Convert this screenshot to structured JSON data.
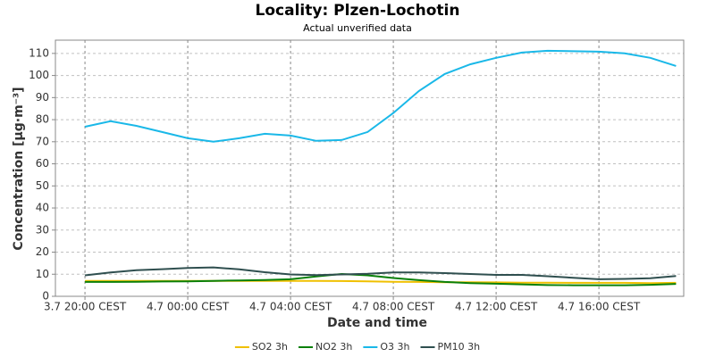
{
  "chart_data": {
    "type": "line",
    "title": "Locality: Plzen-Lochotin",
    "subtitle": "Actual unverified data",
    "x_label": "Date and time",
    "y_label": "Concentration [µg·m⁻³]",
    "categories": [
      "3.7 20:00 CEST",
      null,
      null,
      null,
      "4.7 00:00 CEST",
      null,
      null,
      null,
      "4.7 04:00 CEST",
      null,
      null,
      null,
      "4.7 08:00 CEST",
      null,
      null,
      null,
      "4.7 12:00 CEST",
      null,
      null,
      null,
      "4.7 16:00 CEST",
      null,
      null,
      null
    ],
    "xlim": [
      -1.15,
      23.3
    ],
    "ylim": [
      0,
      116
    ],
    "yticks": [
      0,
      10,
      20,
      30,
      40,
      50,
      60,
      70,
      80,
      90,
      100,
      110
    ],
    "grid": true,
    "legend": "bottom",
    "series": [
      {
        "name": "SO2 3h",
        "color": "#f0c000",
        "values": [
          7,
          7,
          7,
          7,
          7,
          7,
          7,
          7,
          7,
          7,
          6.9,
          6.8,
          6.6,
          6.5,
          6.4,
          6.4,
          6.3,
          6.2,
          6.2,
          6.1,
          6.1,
          6.1,
          6.0,
          6.1
        ]
      },
      {
        "name": "NO2 3h",
        "color": "#0a800a",
        "values": [
          6.5,
          6.5,
          6.6,
          6.7,
          6.8,
          7.0,
          7.2,
          7.4,
          7.7,
          9.0,
          10.1,
          9.5,
          8.3,
          7.3,
          6.5,
          6.0,
          5.7,
          5.4,
          5.1,
          5.0,
          5.0,
          5.0,
          5.2,
          5.6
        ]
      },
      {
        "name": "O3 3h",
        "color": "#1ab8e8",
        "values": [
          76.8,
          79.3,
          77.2,
          74.4,
          71.6,
          70,
          71.6,
          73.6,
          72.8,
          70.4,
          70.8,
          74.4,
          83,
          93,
          100.7,
          105.1,
          108,
          110.4,
          111.2,
          111,
          110.8,
          110,
          108,
          104.3
        ]
      },
      {
        "name": "PM10 3h",
        "color": "#2f4f4f",
        "values": [
          9.5,
          10.8,
          11.8,
          12.3,
          12.8,
          13.1,
          12.2,
          10.9,
          9.9,
          9.6,
          9.9,
          10.2,
          10.8,
          10.8,
          10.5,
          10.1,
          9.7,
          9.7,
          9.1,
          8.4,
          7.7,
          7.9,
          8.2,
          9.2
        ]
      }
    ]
  }
}
